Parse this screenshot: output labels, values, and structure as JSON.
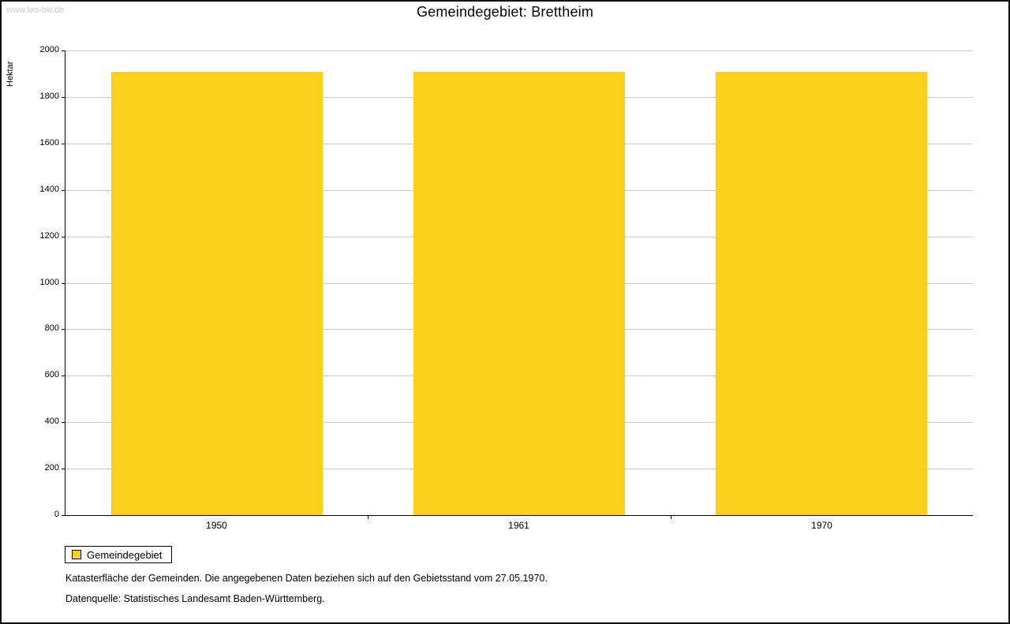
{
  "watermark": "www.leo-bw.de",
  "title": "Gemeindegebiet: Brettheim",
  "legend": {
    "label": "Gemeindegebiet"
  },
  "footnotes": {
    "line1": "Katasterfläche der Gemeinden. Die angegebenen Daten beziehen sich auf den Gebietsstand vom 27.05.1970.",
    "line2": "Datenquelle: Statistisches Landesamt Baden-Württemberg."
  },
  "chart_data": {
    "type": "bar",
    "title": "Gemeindegebiet: Brettheim",
    "categories": [
      "1950",
      "1961",
      "1970"
    ],
    "series": [
      {
        "name": "Gemeindegebiet",
        "values": [
          1908,
          1908,
          1908
        ]
      }
    ],
    "xlabel": "",
    "ylabel": "Hektar",
    "ylim": [
      0,
      2000
    ],
    "ytick_step": 200,
    "grid": true,
    "legend_position": "bottom-left",
    "bar_color": "#FCD11E",
    "grid_color": "#CCCCCC",
    "axis_color": "#000000"
  }
}
